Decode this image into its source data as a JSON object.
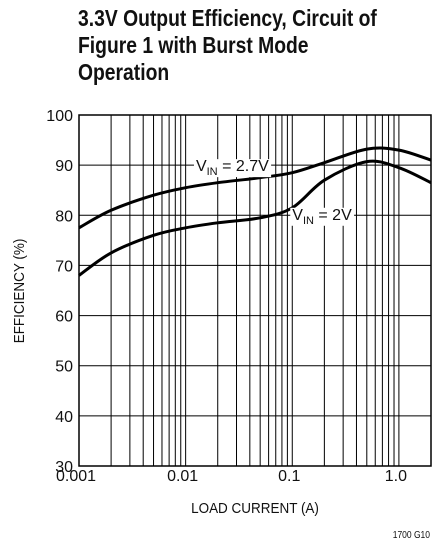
{
  "chart_data": {
    "type": "line",
    "title": [
      "3.3V Output Efficiency, Circuit of",
      "Figure 1 with Burst Mode",
      "Operation"
    ],
    "x_label": "LOAD CURRENT (A)",
    "y_label": "EFFICIENCY (%)",
    "footnote": "1700 G10",
    "x": [
      0.001,
      0.002,
      0.005,
      0.01,
      0.02,
      0.05,
      0.1,
      0.2,
      0.5,
      1,
      2
    ],
    "series": [
      {
        "color": "#000000",
        "values": [
          77.5,
          81,
          84,
          85.5,
          86.5,
          87.5,
          88.5,
          90.5,
          93.2,
          93,
          91
        ]
      },
      {
        "color": "#000000",
        "values": [
          68,
          72.5,
          76,
          77.5,
          78.5,
          79.5,
          81.5,
          87,
          90.7,
          89.5,
          86.5
        ]
      }
    ],
    "annotations": [
      {
        "parts": [
          "V",
          "IN",
          " = 2.7V"
        ],
        "x": 0.0125,
        "y": 90
      },
      {
        "parts": [
          "V",
          "IN",
          " = 2V"
        ],
        "x": 0.1,
        "y": 80.3
      }
    ],
    "xlim": [
      0.001,
      2
    ],
    "ylim": [
      30,
      100
    ],
    "xscale": "log",
    "grid": true,
    "xticks": [
      0.001,
      0.01,
      0.1,
      {
        "value": 1,
        "label": "1.0"
      }
    ],
    "yticks": [
      30,
      40,
      50,
      60,
      70,
      80,
      90,
      100
    ]
  }
}
